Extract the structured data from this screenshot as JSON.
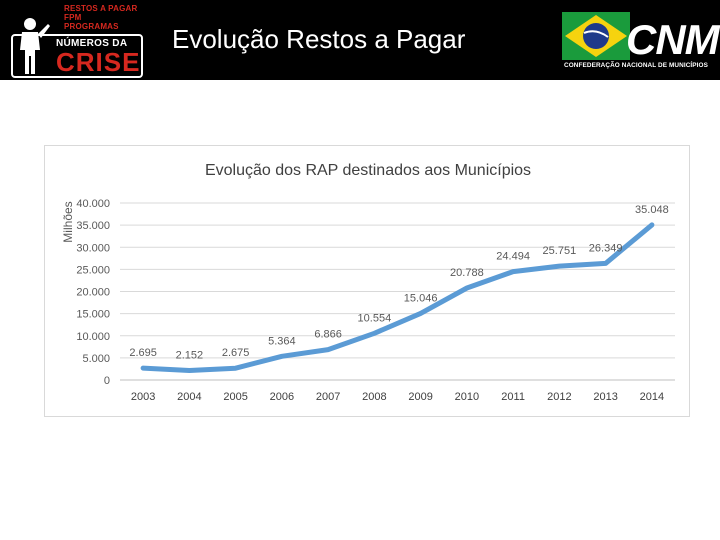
{
  "header": {
    "title": "Evolução Restos a Pagar",
    "logo_left": {
      "lines": [
        "RESTOS A PAGAR",
        "FPM",
        "PROGRAMAS"
      ],
      "numeros": "NÚMEROS DA",
      "crise": "CRISE"
    },
    "logo_right": {
      "name": "CNM",
      "subtitle": "CONFEDERAÇÃO NACIONAL DE MUNICÍPIOS"
    }
  },
  "colors": {
    "header_bg": "#000000",
    "line": "#5b9bd5",
    "grid": "#d9d9d9",
    "brand_red": "#d6281f"
  },
  "chart_data": {
    "type": "line",
    "title": "Evolução dos RAP destinados aos Municípios",
    "xlabel": "",
    "ylabel": "Milhões",
    "categories": [
      "2003",
      "2004",
      "2005",
      "2006",
      "2007",
      "2008",
      "2009",
      "2010",
      "2011",
      "2012",
      "2013",
      "2014"
    ],
    "values": [
      2695,
      2152,
      2675,
      5364,
      6866,
      10554,
      15046,
      20788,
      24494,
      25751,
      26349,
      35048
    ],
    "data_labels": [
      "2.695",
      "2.152",
      "2.675",
      "5.364",
      "6.866",
      "10.554",
      "15.046",
      "20.788",
      "24.494",
      "25.751",
      "26.349",
      "35.048"
    ],
    "y_ticks": [
      0,
      5000,
      10000,
      15000,
      20000,
      25000,
      30000,
      35000,
      40000
    ],
    "y_tick_labels": [
      "0",
      "5.000",
      "10.000",
      "15.000",
      "20.000",
      "25.000",
      "30.000",
      "35.000",
      "40.000"
    ],
    "ylim": [
      0,
      40000
    ],
    "grid": true,
    "legend": "none"
  }
}
